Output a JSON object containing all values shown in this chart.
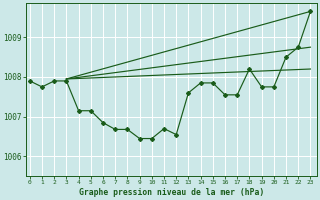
{
  "title": "Graphe pression niveau de la mer (hPa)",
  "bg_color": "#cce8e8",
  "grid_color": "#ffffff",
  "line_color": "#1a5c1a",
  "x_ticks": [
    0,
    1,
    2,
    3,
    4,
    5,
    6,
    7,
    8,
    9,
    10,
    11,
    12,
    13,
    14,
    15,
    16,
    17,
    18,
    19,
    20,
    21,
    22,
    23
  ],
  "y_ticks": [
    1006,
    1007,
    1008,
    1009
  ],
  "ylim": [
    1005.5,
    1009.85
  ],
  "xlim": [
    -0.3,
    23.5
  ],
  "series1_x": [
    0,
    1,
    2,
    3,
    4,
    5,
    6,
    7,
    8,
    9,
    10,
    11,
    12,
    13,
    14,
    15,
    16,
    17,
    18,
    19,
    20,
    21,
    22,
    23
  ],
  "series1_y": [
    1007.9,
    1007.75,
    1007.9,
    1007.9,
    1007.15,
    1007.15,
    1006.85,
    1006.68,
    1006.68,
    1006.45,
    1006.45,
    1006.7,
    1006.55,
    1007.6,
    1007.85,
    1007.85,
    1007.55,
    1007.55,
    1008.2,
    1007.75,
    1007.75,
    1008.5,
    1008.75,
    1009.65
  ],
  "series2_x": [
    3,
    23
  ],
  "series2_y": [
    1007.95,
    1009.65
  ],
  "series3_x": [
    3,
    23
  ],
  "series3_y": [
    1007.95,
    1008.75
  ],
  "series4_x": [
    3,
    23
  ],
  "series4_y": [
    1007.95,
    1008.2
  ]
}
